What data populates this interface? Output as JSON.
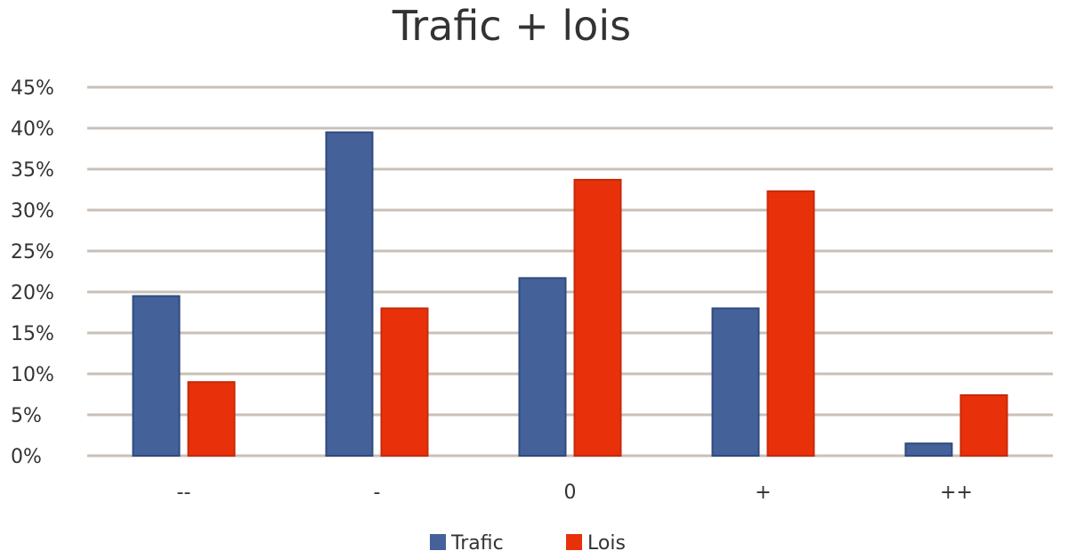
{
  "chart_data": {
    "type": "bar",
    "title": "Trafic + lois",
    "categories": [
      "--",
      "-",
      "0",
      "+",
      "++"
    ],
    "series": [
      {
        "name": "Trafic",
        "color": "#44619a",
        "values": [
          19.5,
          39.5,
          21.7,
          18.0,
          1.5
        ]
      },
      {
        "name": "Lois",
        "color": "#e8310a",
        "values": [
          9.0,
          18.0,
          33.7,
          32.3,
          7.4
        ]
      }
    ],
    "ylim": [
      0,
      45
    ],
    "yticks": [
      0,
      5,
      10,
      15,
      20,
      25,
      30,
      35,
      40,
      45
    ],
    "ytick_labels": [
      "0%",
      "5%",
      "10%",
      "15%",
      "20%",
      "25%",
      "30%",
      "35%",
      "40%",
      "45%"
    ],
    "grid": true,
    "legend_position": "bottom"
  }
}
